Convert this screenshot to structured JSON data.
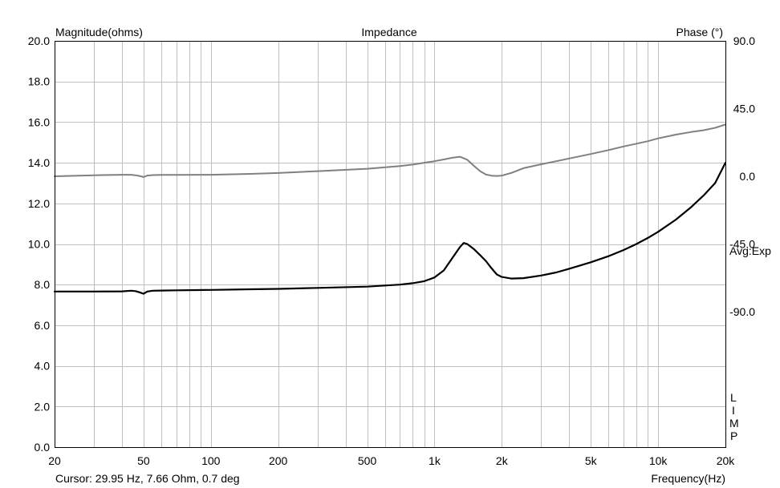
{
  "colors": {
    "background": "#ffffff",
    "grid": "#c0c0c0",
    "frame": "#000000",
    "magnitude": "#000000",
    "phase": "#808080",
    "cursor": "#d4d400"
  },
  "chart_data": {
    "type": "line",
    "title": "Impedance",
    "ylabel": "Magnitude(ohms)",
    "y2label": "Phase (°)",
    "xlabel": "Frequency(Hz)",
    "xscale": "log",
    "xlim": [
      20,
      20000
    ],
    "ylim": [
      0,
      20
    ],
    "y2lim": [
      -180,
      90
    ],
    "grid": true,
    "x_tick_values": [
      20,
      50,
      100,
      200,
      500,
      1000,
      2000,
      5000,
      10000,
      20000
    ],
    "x_tick_labels": [
      "20",
      "50",
      "100",
      "200",
      "500",
      "1k",
      "2k",
      "5k",
      "10k",
      "20k"
    ],
    "x_minor_grid": [
      30,
      40,
      60,
      70,
      80,
      90,
      300,
      400,
      600,
      700,
      800,
      900,
      3000,
      4000,
      6000,
      7000,
      8000,
      9000
    ],
    "y_tick_values": [
      0,
      2,
      4,
      6,
      8,
      10,
      12,
      14,
      16,
      18,
      20
    ],
    "y_tick_labels": [
      "0.0",
      "2.0",
      "4.0",
      "6.0",
      "8.0",
      "10.0",
      "12.0",
      "14.0",
      "16.0",
      "18.0",
      "20.0"
    ],
    "y2_tick_values": [
      90,
      45,
      0,
      -45,
      -90
    ],
    "y2_tick_labels": [
      "90.0",
      "45.0",
      "0.0",
      "-45.0",
      "-90.0"
    ],
    "right_annotation": "Avg:Exp",
    "corner_label": [
      "L",
      "I",
      "M",
      "P"
    ],
    "cursor_x": 29.95,
    "cursor_readout": "Cursor: 29.95 Hz, 7.66 Ohm, 0.7 deg",
    "series": [
      {
        "axis": "left",
        "x": [
          20,
          30,
          40,
          44,
          46,
          48,
          50,
          52,
          55,
          60,
          70,
          100,
          150,
          200,
          300,
          500,
          700,
          800,
          900,
          1000,
          1100,
          1200,
          1300,
          1350,
          1400,
          1500,
          1600,
          1700,
          1800,
          1900,
          2000,
          2200,
          2500,
          3000,
          3500,
          4000,
          5000,
          6000,
          7000,
          8000,
          9000,
          10000,
          12000,
          14000,
          16000,
          18000,
          20000
        ],
        "y": [
          7.66,
          7.66,
          7.67,
          7.7,
          7.68,
          7.62,
          7.55,
          7.66,
          7.7,
          7.71,
          7.72,
          7.74,
          7.77,
          7.79,
          7.84,
          7.9,
          8.0,
          8.07,
          8.17,
          8.35,
          8.7,
          9.3,
          9.85,
          10.05,
          10.0,
          9.75,
          9.45,
          9.15,
          8.8,
          8.5,
          8.38,
          8.3,
          8.32,
          8.45,
          8.6,
          8.78,
          9.1,
          9.4,
          9.7,
          10.0,
          10.3,
          10.6,
          11.2,
          11.8,
          12.4,
          13.0,
          14.0
        ]
      },
      {
        "axis": "right",
        "x": [
          20,
          30,
          40,
          44,
          46,
          48,
          50,
          52,
          55,
          60,
          70,
          100,
          150,
          200,
          300,
          500,
          700,
          800,
          900,
          1000,
          1100,
          1200,
          1300,
          1400,
          1500,
          1600,
          1700,
          1800,
          1900,
          2000,
          2200,
          2500,
          3000,
          3500,
          4000,
          5000,
          6000,
          7000,
          8000,
          9000,
          10000,
          12000,
          14000,
          16000,
          18000,
          20000
        ],
        "y": [
          0,
          0.7,
          1.0,
          1.0,
          0.7,
          0.2,
          -0.5,
          0.5,
          0.8,
          0.9,
          0.9,
          1.0,
          1.6,
          2.2,
          3.4,
          5.0,
          6.8,
          7.8,
          9.0,
          10.0,
          11.2,
          12.3,
          13.0,
          11.0,
          7.0,
          3.4,
          1.1,
          0.4,
          0.2,
          0.5,
          2.2,
          5.4,
          8.0,
          10.0,
          11.8,
          14.8,
          17.4,
          19.8,
          21.7,
          23.3,
          25.2,
          27.7,
          29.4,
          30.6,
          32.2,
          34.4
        ]
      }
    ]
  }
}
